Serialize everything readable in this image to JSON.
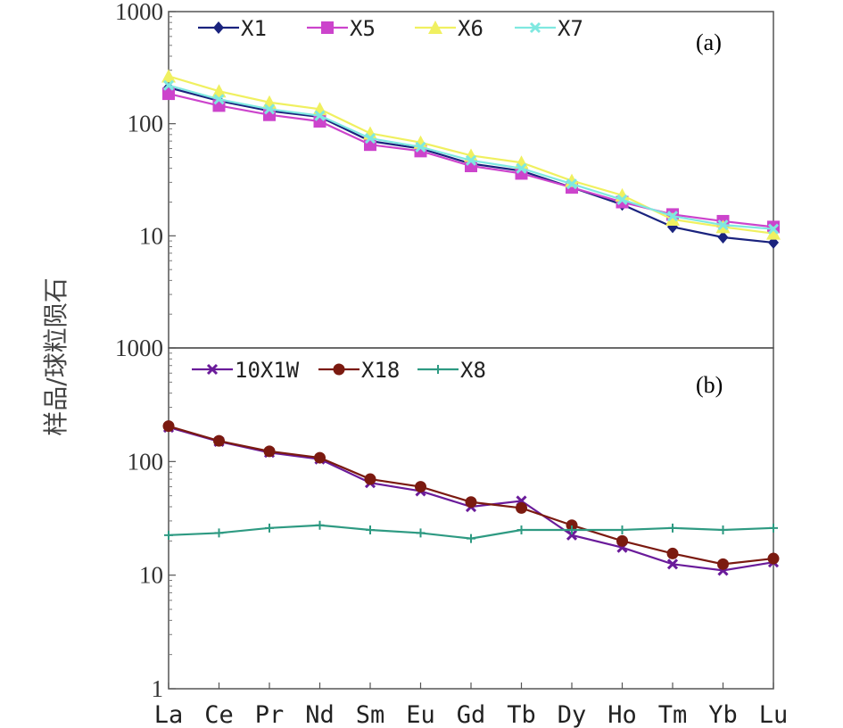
{
  "chart_data": {
    "type": "line",
    "y_scale": "log",
    "ylabel": "样品/球粒陨石",
    "categories": [
      "La",
      "Ce",
      "Pr",
      "Nd",
      "Sm",
      "Eu",
      "Gd",
      "Tb",
      "Dy",
      "Ho",
      "Tm",
      "Yb",
      "Lu"
    ],
    "panels": [
      {
        "panel_label": "(a)",
        "ylim": [
          1,
          1000
        ],
        "y_ticks": [
          {
            "value": 10,
            "label": "10"
          },
          {
            "value": 100,
            "label": "100"
          },
          {
            "value": 1000,
            "label": "1000"
          }
        ],
        "legend_position": "top",
        "series": [
          {
            "name": "X1",
            "color": "#1a237e",
            "marker": "diamond",
            "values": [
              210,
              160,
              130,
              115,
              70,
              60,
              44,
              38,
              27,
              19,
              12,
              9.7,
              8.7
            ]
          },
          {
            "name": "X5",
            "color": "#cc44cc",
            "marker": "square",
            "values": [
              185,
              145,
              120,
              105,
              65,
              57,
              42,
              36,
              27,
              20,
              15.5,
              13.5,
              12
            ]
          },
          {
            "name": "X6",
            "color": "#f0f060",
            "marker": "triangle",
            "values": [
              265,
              195,
              155,
              135,
              82,
              68,
              52,
              45,
              31,
              23,
              14,
              12,
              10.5
            ]
          },
          {
            "name": "X7",
            "color": "#7fe8e0",
            "marker": "x",
            "values": [
              220,
              165,
              135,
              118,
              74,
              62,
              47,
              40,
              29,
              21,
              15,
              12.5,
              11.5
            ]
          }
        ]
      },
      {
        "panel_label": "(b)",
        "ylim": [
          1,
          1000
        ],
        "y_ticks": [
          {
            "value": 1,
            "label": "1"
          },
          {
            "value": 10,
            "label": "10"
          },
          {
            "value": 100,
            "label": "100"
          },
          {
            "value": 1000,
            "label": "1000"
          }
        ],
        "legend_position": "top-left",
        "series": [
          {
            "name": "10X1W",
            "color": "#6a1b9a",
            "marker": "x",
            "values": [
              200,
              150,
              120,
              105,
              65,
              55,
              40,
              45,
              22.5,
              17.5,
              12.5,
              11,
              13
            ]
          },
          {
            "name": "X18",
            "color": "#7b1a10",
            "marker": "circle",
            "values": [
              205,
              152,
              123,
              108,
              70,
              60,
              44,
              39,
              27.5,
              20,
              15.5,
              12.5,
              14
            ]
          },
          {
            "name": "X8",
            "color": "#2e9a82",
            "marker": "plus",
            "values": [
              22.5,
              23.5,
              26,
              27.5,
              25,
              23.5,
              21,
              25,
              25,
              25,
              26,
              25,
              26
            ]
          }
        ]
      }
    ]
  }
}
